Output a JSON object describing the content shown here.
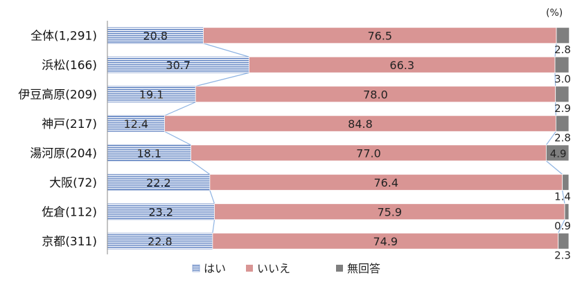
{
  "chart_data": {
    "type": "bar",
    "stacked": true,
    "orientation": "horizontal",
    "percent_stacked": true,
    "unit_label": "(%)",
    "categories": [
      "全体(1,291)",
      "浜松(166)",
      "伊豆高原(209)",
      "神戸(217)",
      "湯河原(204)",
      "大阪(72)",
      "佐倉(112)",
      "京都(311)"
    ],
    "series": [
      {
        "name": "はい",
        "values": [
          20.8,
          30.7,
          19.1,
          12.4,
          18.1,
          22.2,
          23.2,
          22.8
        ]
      },
      {
        "name": "いいえ",
        "values": [
          76.5,
          66.3,
          78.0,
          84.8,
          77.0,
          76.4,
          75.9,
          74.9
        ]
      },
      {
        "name": "無回答",
        "values": [
          2.8,
          3.0,
          2.9,
          2.8,
          4.9,
          1.4,
          0.9,
          2.3
        ]
      }
    ],
    "labels": {
      "はい": [
        "20.8",
        "30.7",
        "19.1",
        "12.4",
        "18.1",
        "22.2",
        "23.2",
        "22.8"
      ],
      "いいえ": [
        "76.5",
        "66.3",
        "78.0",
        "84.8",
        "77.0",
        "76.4",
        "75.9",
        "74.9"
      ],
      "無回答": [
        "2.8",
        "3.0",
        "2.9",
        "2.8",
        "4.9",
        "1.4",
        "0.9",
        "2.3"
      ]
    },
    "colors": {
      "はい": "#9fb3d8",
      "いいえ": "#d99594",
      "無回答": "#7f7f7f",
      "connector": "#8eb4e3",
      "axis": "#888888"
    },
    "xlim": [
      0,
      100
    ],
    "legend_position": "bottom"
  }
}
